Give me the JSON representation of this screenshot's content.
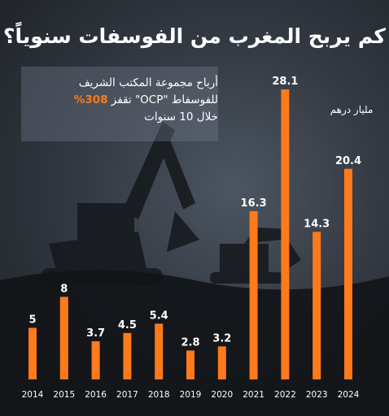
{
  "title": "كم يربح المغرب من الفوسفات سنوياً؟",
  "note": {
    "line1": "أرباح مجموعة المكتب الشريف",
    "line2_a": "للفوسفاط \"OCP\" تقفز ",
    "line2_b": "308%",
    "line3": "خلال 10 سنوات"
  },
  "unit": "مليار درهم",
  "colors": {
    "bar": "#ff7a1a",
    "text": "#ffffff",
    "background": "#1f2227"
  },
  "chart_data": {
    "type": "bar",
    "title": "كم يربح المغرب من الفوسفات سنوياً؟",
    "categories": [
      "2014",
      "2015",
      "2016",
      "2017",
      "2018",
      "2019",
      "2020",
      "2021",
      "2022",
      "2023",
      "2024"
    ],
    "values": [
      5,
      8,
      3.7,
      4.5,
      5.4,
      2.8,
      3.2,
      16.3,
      28.1,
      14.3,
      20.4
    ],
    "labels": [
      "5",
      "8",
      "3.7",
      "4.5",
      "5.4",
      "2.8",
      "3.2",
      "16.3",
      "28.1",
      "14.3",
      "20.4"
    ],
    "unit": "مليار درهم",
    "grid": false,
    "legend": "none"
  }
}
